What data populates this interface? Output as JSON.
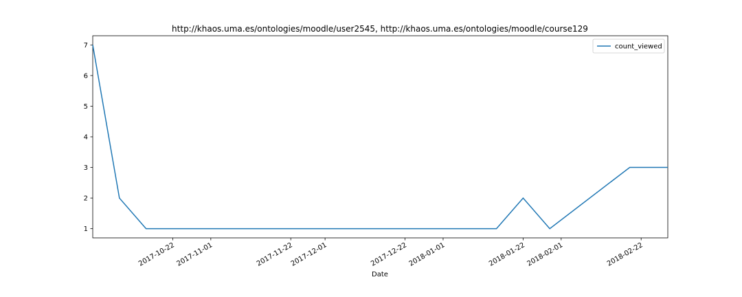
{
  "chart_data": {
    "type": "line",
    "title": "http://khaos.uma.es/ontologies/moodle/user2545, http://khaos.uma.es/ontologies/moodle/course129",
    "xlabel": "Date",
    "ylabel": "",
    "x_type": "date",
    "xlim": [
      "2017-10-01",
      "2018-03-01"
    ],
    "ylim": [
      0.7,
      7.3
    ],
    "x_ticks": [
      "2017-10-22",
      "2017-11-01",
      "2017-11-22",
      "2017-12-01",
      "2017-12-22",
      "2018-01-01",
      "2018-01-22",
      "2018-02-01",
      "2018-02-22"
    ],
    "y_ticks": [
      1,
      2,
      3,
      4,
      5,
      6,
      7
    ],
    "grid": false,
    "legend": {
      "position": "top-right",
      "entries": [
        "count_viewed"
      ]
    },
    "series": [
      {
        "name": "count_viewed",
        "color": "#1f77b4",
        "x": [
          "2017-10-01",
          "2017-10-08",
          "2017-10-15",
          "2017-12-15",
          "2018-01-15",
          "2018-01-22",
          "2018-01-29",
          "2018-02-19",
          "2018-03-01"
        ],
        "y": [
          7,
          2,
          1,
          1,
          1,
          2,
          1,
          3,
          3
        ]
      }
    ]
  }
}
